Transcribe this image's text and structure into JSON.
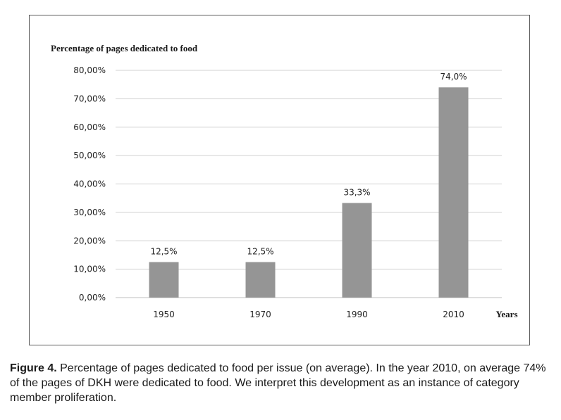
{
  "chart_data": {
    "type": "bar",
    "ylabel": "Percentage of pages dedicated to food",
    "xlabel": "Years",
    "categories": [
      "1950",
      "1970",
      "1990",
      "2010"
    ],
    "values": [
      12.5,
      12.5,
      33.3,
      74.0
    ],
    "data_labels": [
      "12,5%",
      "12,5%",
      "33,3%",
      "74,0%"
    ],
    "ylim": [
      0,
      80
    ],
    "yticks": [
      0,
      10,
      20,
      30,
      40,
      50,
      60,
      70,
      80
    ],
    "ytick_labels": [
      "0,00%",
      "10,00%",
      "20,00%",
      "30,00%",
      "40,00%",
      "50,00%",
      "60,00%",
      "70,00%",
      "80,00%"
    ],
    "grid": true,
    "bar_color": "#959595",
    "grid_color": "#d0d0d0"
  },
  "caption": {
    "figure_label": "Figure 4.",
    "text": " Percentage of pages dedicated to food per issue (on average). In the year 2010, on average 74% of the pages of DKH were dedicated to food. We interpret this development as an instance of category member proliferation."
  }
}
